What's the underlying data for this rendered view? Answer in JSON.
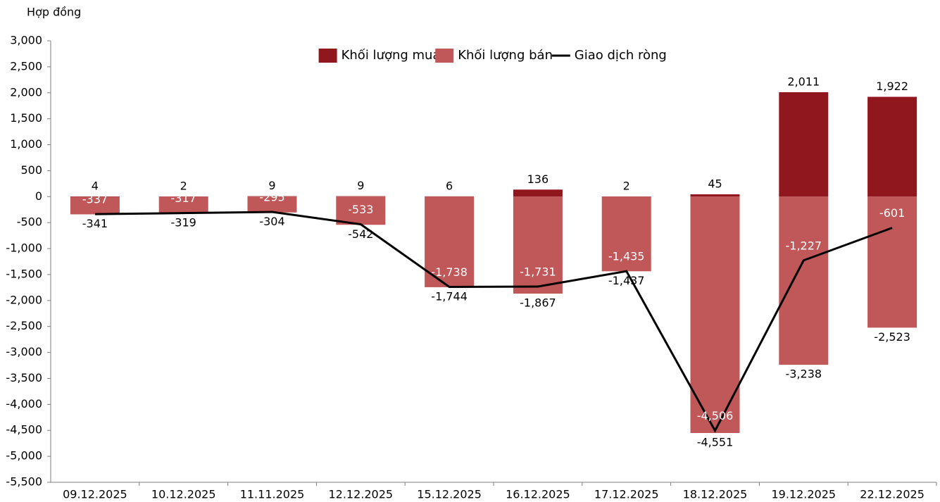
{
  "chart_data": {
    "type": "bar",
    "y_label": "Hợp đồng",
    "categories": [
      "09.12.2025",
      "10.12.2025",
      "11.11.2025",
      "12.12.2025",
      "15.12.2025",
      "16.12.2025",
      "17.12.2025",
      "18.12.2025",
      "19.12.2025",
      "22.12.2025"
    ],
    "series": [
      {
        "name": "Khối lượng mua",
        "type": "bar",
        "color": "#91171f",
        "label_color": "#000000",
        "values": [
          4,
          2,
          9,
          9,
          6,
          136,
          2,
          45,
          2011,
          1922
        ],
        "value_labels": [
          "4",
          "2",
          "9",
          "9",
          "6",
          "136",
          "2",
          "45",
          "2,011",
          "1,922"
        ]
      },
      {
        "name": "Khối lượng bán",
        "type": "bar",
        "color": "#c0585a",
        "label_color": "#000000",
        "values": [
          -341,
          -319,
          -304,
          -542,
          -1744,
          -1867,
          -1437,
          -4551,
          -3238,
          -2523
        ],
        "value_labels": [
          "-341",
          "-319",
          "-304",
          "-542",
          "-1,744",
          "-1,867",
          "-1,437",
          "-4,551",
          "-3,238",
          "-2,523"
        ]
      },
      {
        "name": "Giao dịch ròng",
        "type": "line",
        "color": "#000000",
        "label_color": "#ffffff",
        "values": [
          -337,
          -317,
          -295,
          -533,
          -1738,
          -1731,
          -1435,
          -4506,
          -1227,
          -601
        ],
        "value_labels": [
          "-337",
          "-317",
          "-295",
          "-533",
          "-1,738",
          "-1,731",
          "-1,435",
          "-4,506",
          "-1,227",
          "-601"
        ]
      }
    ],
    "ylim": [
      -5500,
      3000
    ],
    "yticks": [
      {
        "value": -5500,
        "label": "-5,500"
      },
      {
        "value": -5000,
        "label": "-5,000"
      },
      {
        "value": -4500,
        "label": "-4,500"
      },
      {
        "value": -4000,
        "label": "-4,000"
      },
      {
        "value": -3500,
        "label": "-3,500"
      },
      {
        "value": -3000,
        "label": "-3,000"
      },
      {
        "value": -2500,
        "label": "-2,500"
      },
      {
        "value": -2000,
        "label": "-2,000"
      },
      {
        "value": -1500,
        "label": "-1,500"
      },
      {
        "value": -1000,
        "label": "-1,000"
      },
      -500,
      0,
      500,
      {
        "value": 1000,
        "label": "1,000"
      },
      {
        "value": 1500,
        "label": "1,500"
      },
      {
        "value": 2000,
        "label": "2,000"
      },
      {
        "value": 2500,
        "label": "2,500"
      },
      {
        "value": 3000,
        "label": "3,000"
      }
    ],
    "legend": "top",
    "grid": false
  }
}
